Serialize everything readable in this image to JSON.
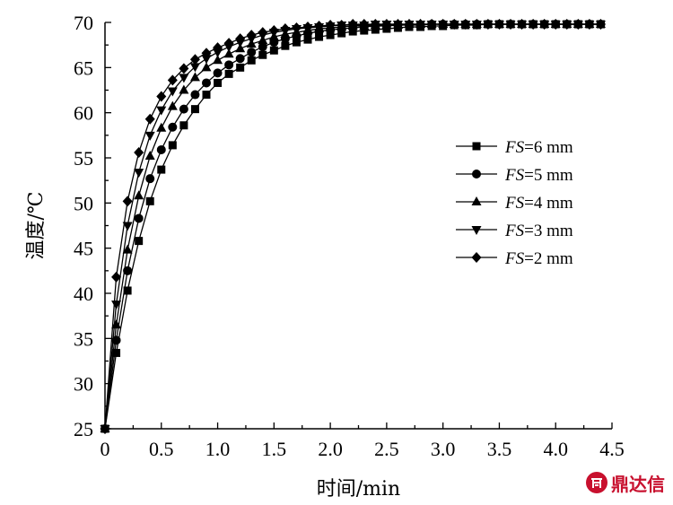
{
  "chart_data": {
    "type": "line",
    "title": "",
    "xlabel": "时间/min",
    "ylabel": "温度/℃",
    "xlim": [
      0,
      4.5
    ],
    "ylim": [
      25,
      70
    ],
    "xticks": [
      0,
      0.5,
      1.0,
      1.5,
      2.0,
      2.5,
      3.0,
      3.5,
      4.0,
      4.5
    ],
    "xtick_labels": [
      "0",
      "0.5",
      "1.0",
      "1.5",
      "2.0",
      "2.5",
      "3.0",
      "3.5",
      "4.0",
      "4.5"
    ],
    "yticks": [
      25,
      30,
      35,
      40,
      45,
      50,
      55,
      60,
      65,
      70
    ],
    "yticks_labels": [
      "25",
      "30",
      "35",
      "40",
      "45",
      "50",
      "55",
      "60",
      "65",
      "70"
    ],
    "grid": false,
    "legend_position": "center-right",
    "series": [
      {
        "name_var": "FS",
        "name_rest": "=6 mm",
        "marker": "square",
        "x": [
          0,
          0.1,
          0.2,
          0.3,
          0.4,
          0.5,
          0.6,
          0.7,
          0.8,
          0.9,
          1.0,
          1.1,
          1.2,
          1.3,
          1.4,
          1.5,
          1.6,
          1.7,
          1.8,
          1.9,
          2.0,
          2.1,
          2.2,
          2.3,
          2.4,
          2.5,
          2.6,
          2.7,
          2.8,
          2.9,
          3.0,
          3.1,
          3.2,
          3.3,
          3.4,
          3.5,
          3.6,
          3.7,
          3.8,
          3.9,
          4.0,
          4.1,
          4.2,
          4.3,
          4.4
        ],
        "y": [
          25.0,
          33.4,
          40.3,
          45.8,
          50.2,
          53.7,
          56.4,
          58.6,
          60.4,
          62.0,
          63.3,
          64.3,
          65.0,
          65.8,
          66.4,
          66.9,
          67.4,
          67.8,
          68.1,
          68.4,
          68.6,
          68.8,
          69.0,
          69.1,
          69.2,
          69.3,
          69.4,
          69.5,
          69.5,
          69.6,
          69.6,
          69.7,
          69.7,
          69.7,
          69.8,
          69.8,
          69.8,
          69.8,
          69.8,
          69.8,
          69.8,
          69.8,
          69.8,
          69.8,
          69.8
        ]
      },
      {
        "name_var": "FS",
        "name_rest": "=5 mm",
        "marker": "circle",
        "x": [
          0,
          0.1,
          0.2,
          0.3,
          0.4,
          0.5,
          0.6,
          0.7,
          0.8,
          0.9,
          1.0,
          1.1,
          1.2,
          1.3,
          1.4,
          1.5,
          1.6,
          1.7,
          1.8,
          1.9,
          2.0,
          2.1,
          2.2,
          2.3,
          2.4,
          2.5,
          2.6,
          2.7,
          2.8,
          2.9,
          3.0,
          3.1,
          3.2,
          3.3,
          3.4,
          3.5,
          3.6,
          3.7,
          3.8,
          3.9,
          4.0,
          4.1,
          4.2,
          4.3,
          4.4
        ],
        "y": [
          25.0,
          34.8,
          42.5,
          48.3,
          52.7,
          55.9,
          58.4,
          60.4,
          62.0,
          63.3,
          64.4,
          65.3,
          66.0,
          66.7,
          67.3,
          67.8,
          68.2,
          68.5,
          68.8,
          69.0,
          69.2,
          69.3,
          69.4,
          69.5,
          69.6,
          69.6,
          69.7,
          69.7,
          69.7,
          69.8,
          69.8,
          69.8,
          69.8,
          69.8,
          69.8,
          69.8,
          69.8,
          69.8,
          69.8,
          69.8,
          69.8,
          69.8,
          69.8,
          69.8,
          69.8
        ]
      },
      {
        "name_var": "FS",
        "name_rest": "=4 mm",
        "marker": "triangle-up",
        "x": [
          0,
          0.1,
          0.2,
          0.3,
          0.4,
          0.5,
          0.6,
          0.7,
          0.8,
          0.9,
          1.0,
          1.1,
          1.2,
          1.3,
          1.4,
          1.5,
          1.6,
          1.7,
          1.8,
          1.9,
          2.0,
          2.1,
          2.2,
          2.3,
          2.4,
          2.5,
          2.6,
          2.7,
          2.8,
          2.9,
          3.0,
          3.1,
          3.2,
          3.3,
          3.4,
          3.5,
          3.6,
          3.7,
          3.8,
          3.9,
          4.0,
          4.1,
          4.2,
          4.3,
          4.4
        ],
        "y": [
          25.0,
          36.5,
          44.8,
          50.8,
          55.2,
          58.3,
          60.7,
          62.5,
          63.9,
          65.0,
          65.8,
          66.5,
          67.1,
          67.6,
          68.0,
          68.4,
          68.7,
          68.9,
          69.1,
          69.3,
          69.4,
          69.5,
          69.6,
          69.6,
          69.7,
          69.7,
          69.7,
          69.8,
          69.8,
          69.8,
          69.8,
          69.8,
          69.8,
          69.8,
          69.8,
          69.8,
          69.8,
          69.8,
          69.8,
          69.8,
          69.8,
          69.8,
          69.8,
          69.8,
          69.8
        ]
      },
      {
        "name_var": "FS",
        "name_rest": "=3 mm",
        "marker": "triangle-down",
        "x": [
          0,
          0.1,
          0.2,
          0.3,
          0.4,
          0.5,
          0.6,
          0.7,
          0.8,
          0.9,
          1.0,
          1.1,
          1.2,
          1.3,
          1.4,
          1.5,
          1.6,
          1.7,
          1.8,
          1.9,
          2.0,
          2.1,
          2.2,
          2.3,
          2.4,
          2.5,
          2.6,
          2.7,
          2.8,
          2.9,
          3.0,
          3.1,
          3.2,
          3.3,
          3.4,
          3.5,
          3.6,
          3.7,
          3.8,
          3.9,
          4.0,
          4.1,
          4.2,
          4.3,
          4.4
        ],
        "y": [
          25.0,
          38.8,
          47.5,
          53.4,
          57.5,
          60.3,
          62.4,
          63.9,
          65.1,
          66.0,
          66.7,
          67.3,
          67.8,
          68.2,
          68.6,
          68.9,
          69.1,
          69.3,
          69.4,
          69.5,
          69.6,
          69.7,
          69.7,
          69.7,
          69.8,
          69.8,
          69.8,
          69.8,
          69.8,
          69.8,
          69.8,
          69.8,
          69.8,
          69.8,
          69.8,
          69.8,
          69.8,
          69.8,
          69.8,
          69.8,
          69.8,
          69.8,
          69.8,
          69.8,
          69.8
        ]
      },
      {
        "name_var": "FS",
        "name_rest": "=2 mm",
        "marker": "diamond",
        "x": [
          0,
          0.1,
          0.2,
          0.3,
          0.4,
          0.5,
          0.6,
          0.7,
          0.8,
          0.9,
          1.0,
          1.1,
          1.2,
          1.3,
          1.4,
          1.5,
          1.6,
          1.7,
          1.8,
          1.9,
          2.0,
          2.1,
          2.2,
          2.3,
          2.4,
          2.5,
          2.6,
          2.7,
          2.8,
          2.9,
          3.0,
          3.1,
          3.2,
          3.3,
          3.4,
          3.5,
          3.6,
          3.7,
          3.8,
          3.9,
          4.0,
          4.1,
          4.2,
          4.3,
          4.4
        ],
        "y": [
          25.0,
          41.8,
          50.2,
          55.6,
          59.3,
          61.8,
          63.6,
          64.9,
          65.9,
          66.6,
          67.2,
          67.7,
          68.2,
          68.6,
          68.9,
          69.1,
          69.3,
          69.4,
          69.5,
          69.6,
          69.7,
          69.7,
          69.8,
          69.8,
          69.8,
          69.8,
          69.8,
          69.8,
          69.8,
          69.8,
          69.8,
          69.8,
          69.8,
          69.8,
          69.8,
          69.8,
          69.8,
          69.8,
          69.8,
          69.8,
          69.8,
          69.8,
          69.8,
          69.8,
          69.8
        ]
      }
    ]
  },
  "watermark": {
    "text": "鼎达信",
    "logo_icon": "ddx-logo-icon",
    "color": "#c8102e"
  }
}
